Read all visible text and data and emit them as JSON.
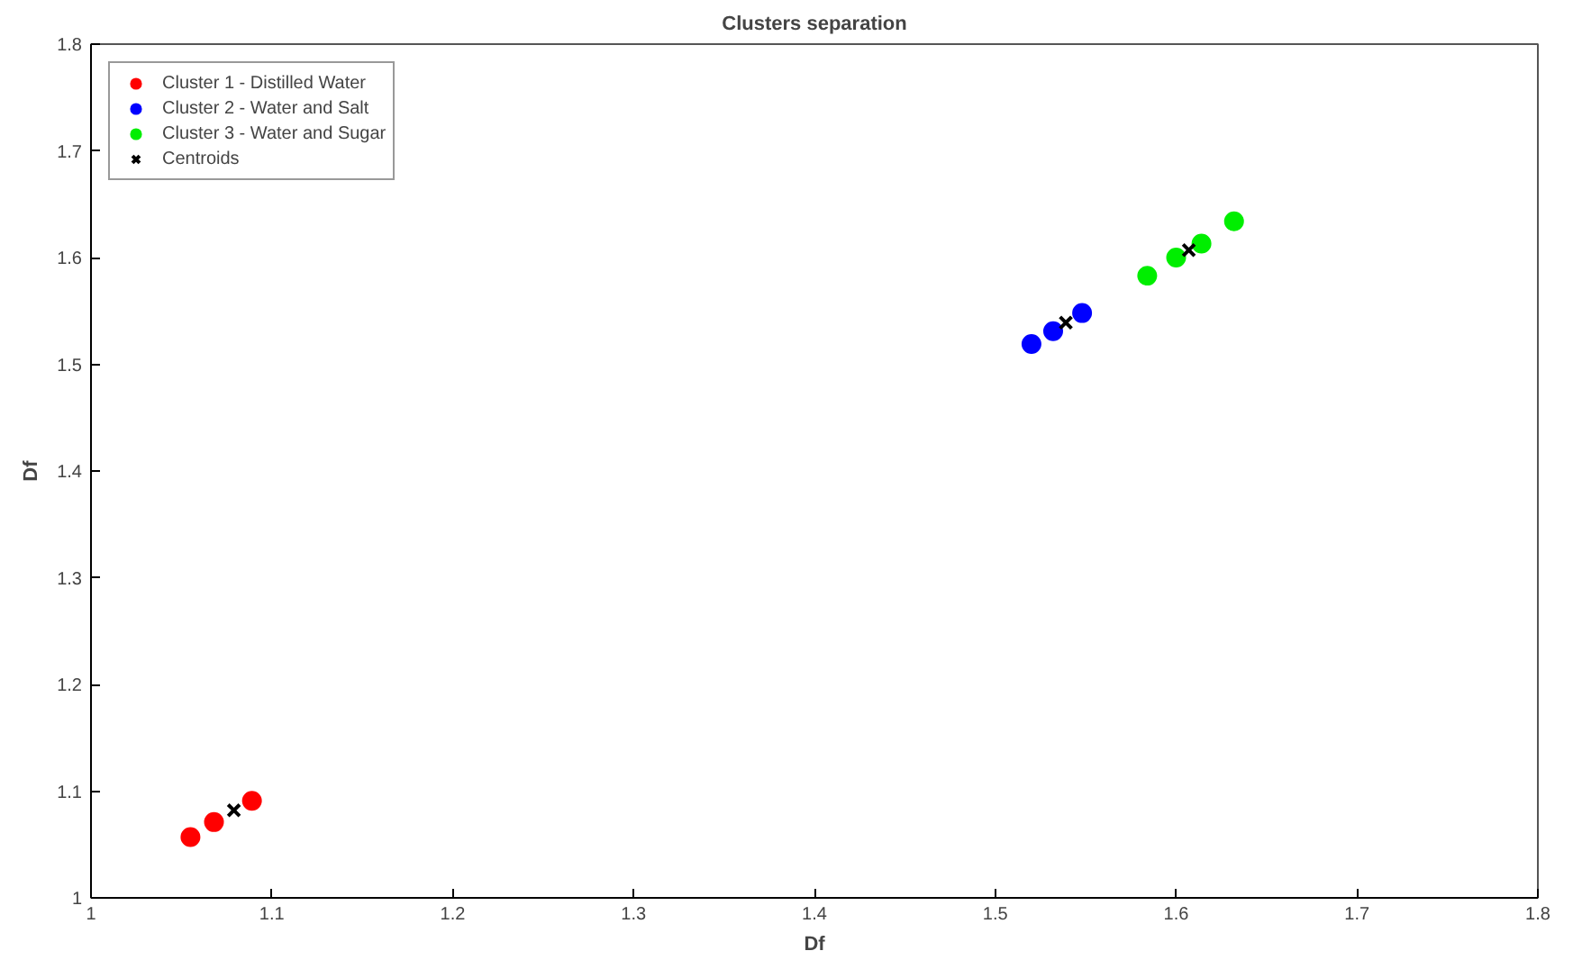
{
  "chart_data": {
    "type": "scatter",
    "title": "Clusters separation",
    "xlabel": "Df",
    "ylabel": "Df",
    "xlim": [
      1,
      1.8
    ],
    "ylim": [
      1,
      1.8
    ],
    "xticks": [
      1,
      1.1,
      1.2,
      1.3,
      1.4,
      1.5,
      1.6,
      1.7,
      1.8
    ],
    "yticks": [
      1,
      1.1,
      1.2,
      1.3,
      1.4,
      1.5,
      1.6,
      1.7,
      1.8
    ],
    "grid": false,
    "legend": "top left",
    "marker": "circle",
    "series": [
      {
        "name": "Cluster 1 - Distilled Water",
        "color": "#ff0000",
        "x": [
          1.055,
          1.068,
          1.089
        ],
        "values": [
          1.057,
          1.071,
          1.091
        ]
      },
      {
        "name": "Cluster 2 - Water and Salt",
        "color": "#0000ff",
        "x": [
          1.52,
          1.532,
          1.548
        ],
        "values": [
          1.519,
          1.531,
          1.548
        ]
      },
      {
        "name": "Cluster 3 - Water and Sugar",
        "color": "#00ee00",
        "x": [
          1.584,
          1.6,
          1.614,
          1.632
        ],
        "values": [
          1.583,
          1.6,
          1.613,
          1.634
        ]
      },
      {
        "name": "Centroids",
        "color": "#000000",
        "marker": "cross",
        "x": [
          1.079,
          1.539,
          1.607
        ],
        "values": [
          1.082,
          1.539,
          1.607
        ]
      }
    ]
  }
}
